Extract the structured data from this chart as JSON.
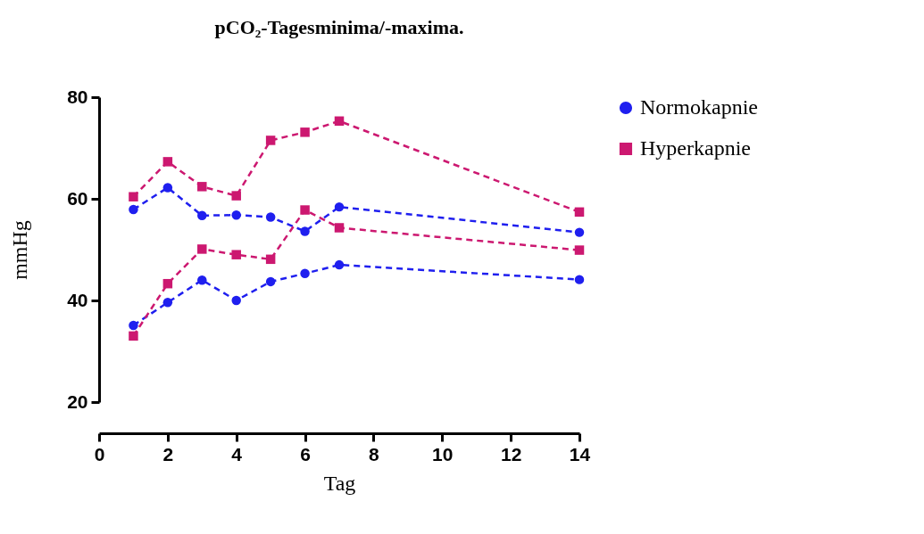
{
  "chart_data": {
    "type": "line",
    "title": "pCO₂-Tagesminima/-maxima.",
    "xlabel": "Tag",
    "ylabel": "mmHg",
    "x": [
      1,
      2,
      3,
      4,
      5,
      6,
      7,
      14
    ],
    "series": [
      {
        "name": "Normokapnie",
        "color": "#1f1fef",
        "marker": "circle",
        "values": [
          57.9,
          62.2,
          56.7,
          56.8,
          56.4,
          53.6,
          58.4,
          53.4
        ]
      },
      {
        "color": "#1f1fef",
        "marker": "circle",
        "values": [
          35.1,
          39.6,
          44.0,
          40.0,
          43.7,
          45.3,
          47.0,
          44.1
        ]
      },
      {
        "name": "Hyperkapnie",
        "color": "#cc1870",
        "marker": "square",
        "values": [
          60.4,
          67.3,
          62.4,
          60.6,
          71.5,
          73.1,
          75.3,
          57.4
        ]
      },
      {
        "color": "#cc1870",
        "marker": "square",
        "values": [
          33.0,
          43.3,
          50.1,
          49.0,
          48.1,
          57.8,
          54.3,
          49.9
        ]
      }
    ],
    "xlim": [
      0,
      14
    ],
    "xticks": [
      0,
      2,
      4,
      6,
      8,
      10,
      12,
      14
    ],
    "ylim": [
      20,
      80
    ],
    "yticks": [
      20,
      40,
      60,
      80
    ],
    "grid": false,
    "legend": "right",
    "line_style": "dashed"
  }
}
